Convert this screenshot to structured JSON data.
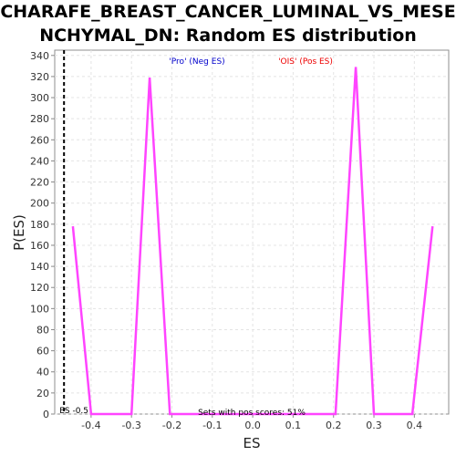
{
  "chart_data": {
    "type": "line",
    "title_line1": "CHARAFE_BREAST_CANCER_LUMINAL_VS_MESE",
    "title_line2": "NCHYMAL_DN: Random ES distribution",
    "xlabel": "ES",
    "ylabel": "P(ES)",
    "xlim": [
      -0.49,
      0.485
    ],
    "ylim": [
      0,
      345
    ],
    "x_ticks": [
      -0.4,
      -0.3,
      -0.2,
      -0.1,
      0.0,
      0.1,
      0.2,
      0.3,
      0.4
    ],
    "x_tick_labels": [
      "-0.4",
      "-0.3",
      "-0.2",
      "-0.1",
      "0.0",
      "0.1",
      "0.2",
      "0.3",
      "0.4"
    ],
    "y_ticks": [
      0,
      20,
      40,
      60,
      80,
      100,
      120,
      140,
      160,
      180,
      200,
      220,
      240,
      260,
      280,
      300,
      320,
      340
    ],
    "y_tick_labels": [
      "0",
      "20",
      "40",
      "60",
      "80",
      "100",
      "120",
      "140",
      "160",
      "180",
      "200",
      "220",
      "240",
      "260",
      "280",
      "300",
      "320",
      "340"
    ],
    "grid": true,
    "series": [
      {
        "color": "#ff44ff",
        "x": [
          -0.445,
          -0.4,
          -0.3,
          -0.255,
          -0.205,
          0.0,
          0.205,
          0.255,
          0.3,
          0.395,
          0.445
        ],
        "y": [
          178,
          0,
          0,
          319,
          0,
          0,
          0,
          329,
          0,
          0,
          178
        ]
      }
    ],
    "marker_line": {
      "x": -0.467,
      "label": "ES -0.5"
    },
    "annotations": {
      "neg_label": "'Pro' (Neg ES)",
      "neg_color": "#0000cc",
      "pos_label": "'OIS' (Pos ES)",
      "pos_color": "#ee0000",
      "sets_label": "Sets with pos scores: 51%"
    }
  }
}
